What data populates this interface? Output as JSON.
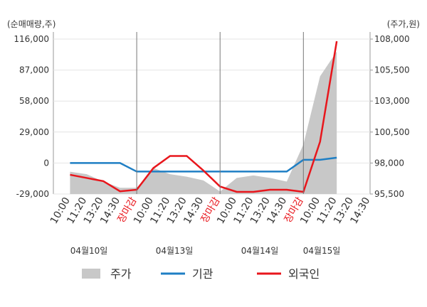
{
  "chart_data": {
    "type": "line",
    "y_label": "(순매매량,주)",
    "y2_label": "(주가,원)",
    "categories": [
      "10:00",
      "11:20",
      "13:20",
      "14:30",
      "장마감",
      "10:00",
      "11:20",
      "13:20",
      "14:30",
      "장마감",
      "10:00",
      "11:20",
      "13:20",
      "14:30",
      "장마감",
      "10:00",
      "11:20",
      "13:20",
      "14:30"
    ],
    "dates": [
      "04월10일",
      "04월13일",
      "04월14일",
      "04월15일"
    ],
    "ylim": [
      -29000,
      116000
    ],
    "yticks": [
      {
        "value": 116000,
        "label": "116,000"
      },
      {
        "value": 87000,
        "label": "87,000"
      },
      {
        "value": 58000,
        "label": "58,000"
      },
      {
        "value": 29000,
        "label": "29,000"
      },
      0,
      {
        "value": -29000,
        "label": "-29,000"
      }
    ],
    "y2lim": [
      95500,
      108000
    ],
    "y2ticks": [
      {
        "value": 108000,
        "label": "108,000"
      },
      {
        "value": 105500,
        "label": "105,500"
      },
      {
        "value": 103000,
        "label": "103,000"
      },
      {
        "value": 100500,
        "label": "100,500"
      },
      {
        "value": 98000,
        "label": "98,000"
      },
      {
        "value": 95500,
        "label": "95,500"
      }
    ],
    "grid": true,
    "series": [
      {
        "name": "주가",
        "type": "area",
        "axis": "y2",
        "color": "#c8c8c8",
        "values": [
          97300,
          97100,
          96500,
          96000,
          96000,
          97600,
          97100,
          96900,
          96600,
          95700,
          96800,
          97000,
          96800,
          96500,
          99500,
          105000,
          107000,
          null,
          null
        ]
      },
      {
        "name": "기관",
        "color": "#1f7fc4",
        "values": [
          0,
          0,
          0,
          0,
          -8000,
          -8000,
          -8000,
          -8000,
          -8000,
          -8000,
          -8000,
          -8000,
          -8000,
          -8000,
          3000,
          3000,
          5000,
          null,
          null
        ]
      },
      {
        "name": "외국인",
        "color": "#e8161c",
        "values": [
          -11000,
          -14000,
          -17000,
          -26500,
          -25000,
          -4700,
          6600,
          6600,
          -7000,
          -22000,
          -27000,
          -27000,
          -25000,
          -25000,
          -27000,
          20000,
          114000,
          null,
          null
        ]
      }
    ]
  }
}
